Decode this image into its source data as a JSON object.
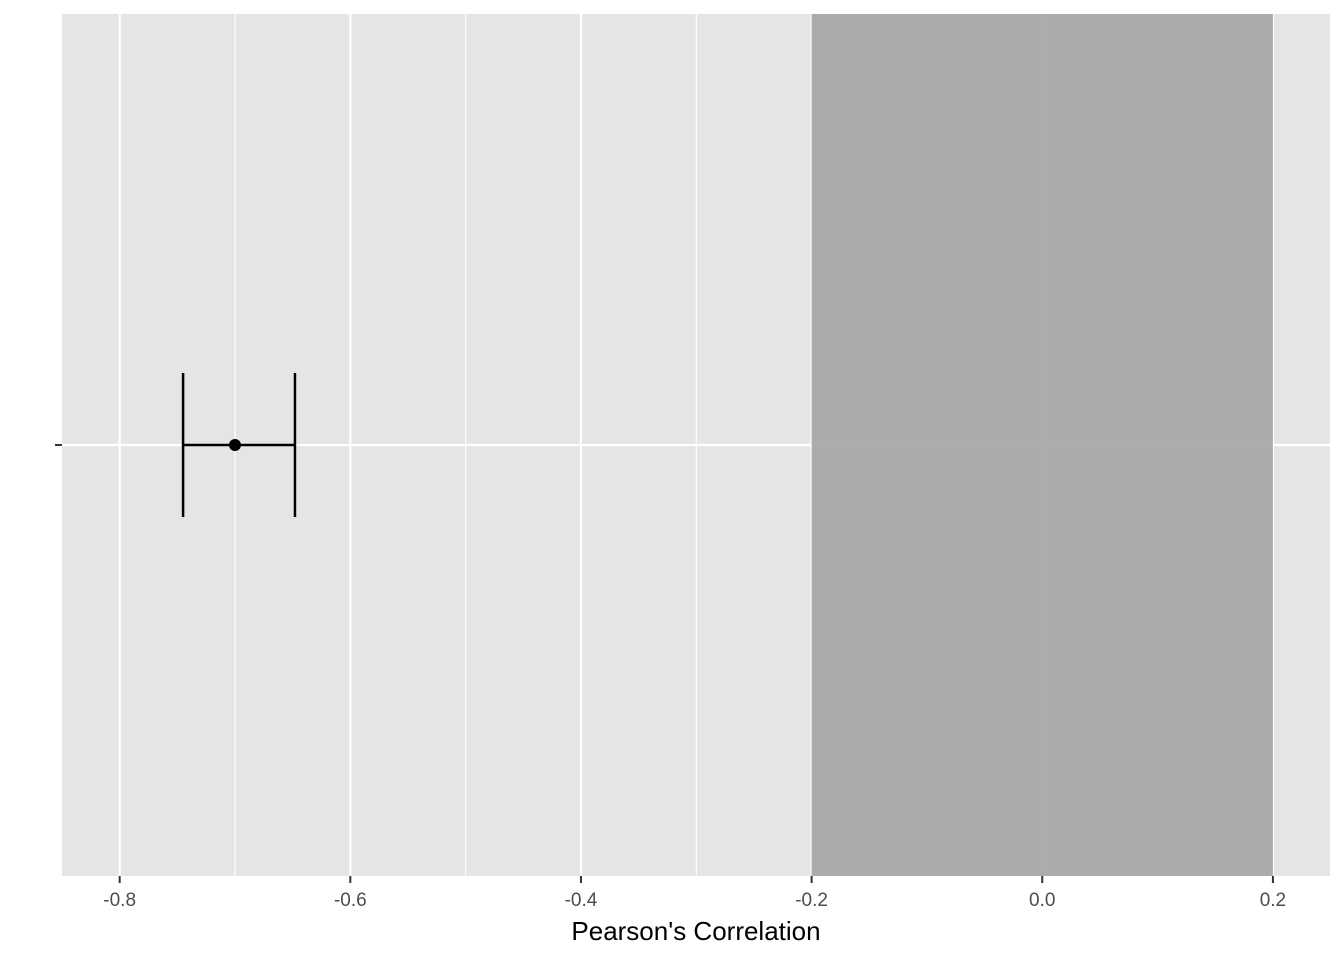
{
  "chart_data": {
    "type": "scatter",
    "xlabel": "Pearson's Correlation",
    "ylabel": "",
    "xlim": [
      -0.85,
      0.2495
    ],
    "grid": true,
    "x_ticks": [
      {
        "value": -0.8,
        "label": "-0.8"
      },
      {
        "value": -0.6,
        "label": "-0.6"
      },
      {
        "value": -0.4,
        "label": "-0.4"
      },
      {
        "value": -0.2,
        "label": "-0.2"
      },
      {
        "value": 0.0,
        "label": "0.0"
      },
      {
        "value": 0.2,
        "label": "0.2"
      }
    ],
    "x_minor_grid": [
      -0.7,
      -0.5,
      -0.3,
      -0.1,
      0.1
    ],
    "equivalence_region": {
      "xmin": -0.2,
      "xmax": 0.2,
      "color": "#a6a6a6"
    },
    "points": [
      {
        "x": -0.7,
        "lower": -0.745,
        "upper": -0.648
      }
    ],
    "colors": {
      "panel": "#e5e5e5",
      "grid": "#ffffff",
      "point": "#000000"
    }
  }
}
